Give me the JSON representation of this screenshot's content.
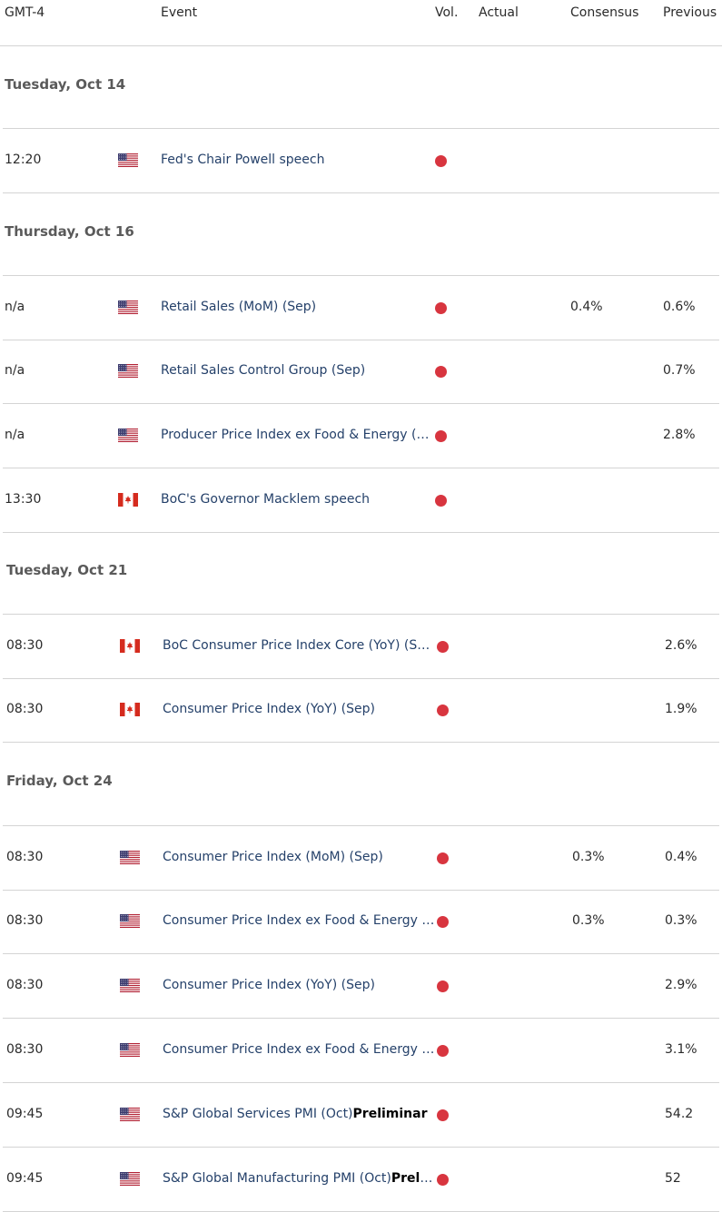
{
  "header": {
    "timezone": "GMT-4",
    "event": "Event",
    "vol": "Vol.",
    "actual": "Actual",
    "consensus": "Consensus",
    "previous": "Previous"
  },
  "colors": {
    "volume_high": "#d8353f",
    "event_text": "#25416a",
    "divider": "#d4d4d4"
  },
  "days": [
    {
      "label": "Tuesday, Oct 14",
      "events": [
        {
          "time": "12:20",
          "flag": "us-flag-icon",
          "name": "Fed's Chair Powell speech",
          "bold": "",
          "consensus": "",
          "previous": ""
        }
      ]
    },
    {
      "label": "Thursday, Oct 16",
      "events": [
        {
          "time": "n/a",
          "flag": "us-flag-icon",
          "name": "Retail Sales (MoM) (Sep)",
          "bold": "",
          "consensus": "0.4%",
          "previous": "0.6%"
        },
        {
          "time": "n/a",
          "flag": "us-flag-icon",
          "name": "Retail Sales Control Group (Sep)",
          "bold": "",
          "consensus": "",
          "previous": "0.7%"
        },
        {
          "time": "n/a",
          "flag": "us-flag-icon",
          "name": "Producer Price Index ex Food & Energy (Yo…",
          "bold": "",
          "consensus": "",
          "previous": "2.8%"
        },
        {
          "time": "13:30",
          "flag": "ca-flag-icon",
          "name": "BoC's Governor Macklem speech",
          "bold": "",
          "consensus": "",
          "previous": ""
        }
      ]
    },
    {
      "label": "Tuesday, Oct 21",
      "events": [
        {
          "time": "08:30",
          "flag": "ca-flag-icon",
          "name": "BoC Consumer Price Index Core (YoY) (Se…",
          "bold": "",
          "consensus": "",
          "previous": "2.6%"
        },
        {
          "time": "08:30",
          "flag": "ca-flag-icon",
          "name": "Consumer Price Index (YoY) (Sep)",
          "bold": "",
          "consensus": "",
          "previous": "1.9%"
        }
      ]
    },
    {
      "label": "Friday, Oct 24",
      "events": [
        {
          "time": "08:30",
          "flag": "us-flag-icon",
          "name": "Consumer Price Index (MoM) (Sep)",
          "bold": "",
          "consensus": "0.3%",
          "previous": "0.4%"
        },
        {
          "time": "08:30",
          "flag": "us-flag-icon",
          "name": "Consumer Price Index ex Food & Energy (…",
          "bold": "",
          "consensus": "0.3%",
          "previous": "0.3%"
        },
        {
          "time": "08:30",
          "flag": "us-flag-icon",
          "name": "Consumer Price Index (YoY) (Sep)",
          "bold": "",
          "consensus": "",
          "previous": "2.9%"
        },
        {
          "time": "08:30",
          "flag": "us-flag-icon",
          "name": "Consumer Price Index ex Food & Energy (Y…",
          "bold": "",
          "consensus": "",
          "previous": "3.1%"
        },
        {
          "time": "09:45",
          "flag": "us-flag-icon",
          "name": "S&P Global Services PMI (Oct)",
          "bold": "Preliminar",
          "consensus": "",
          "previous": "54.2"
        },
        {
          "time": "09:45",
          "flag": "us-flag-icon",
          "name": "S&P Global Manufacturing PMI (Oct)",
          "bold": "Preli…",
          "consensus": "",
          "previous": "52"
        }
      ]
    }
  ]
}
